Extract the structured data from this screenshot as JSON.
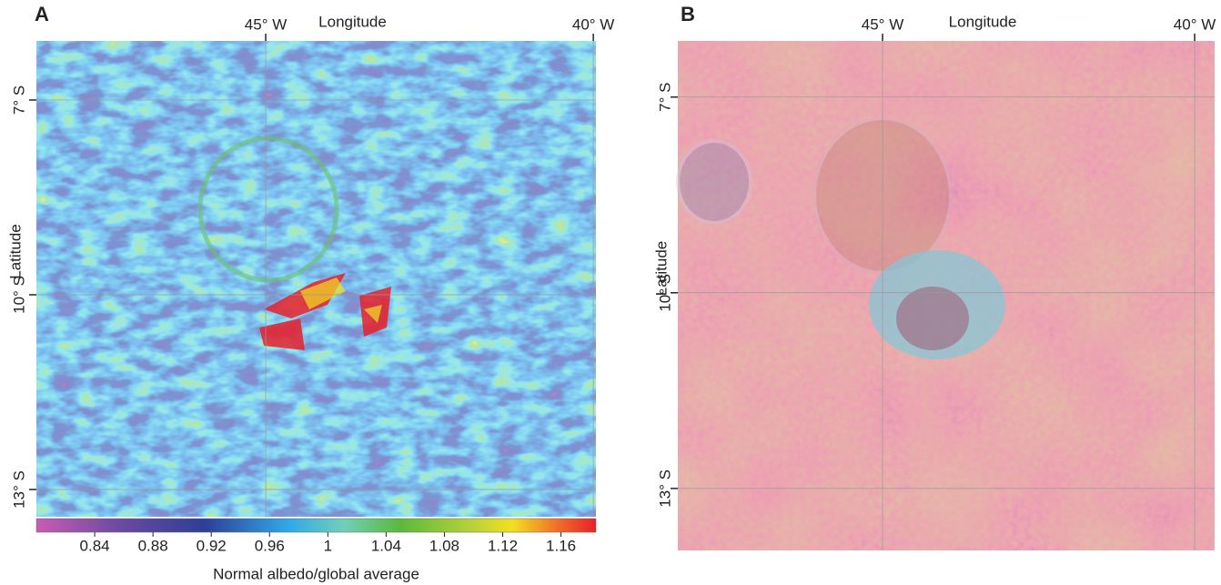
{
  "panels": [
    {
      "label": "A",
      "x_axis_label": "Longitude",
      "y_axis_label": "Latitude",
      "xlim": [
        -48.5,
        -39.96
      ],
      "ylim": [
        -13.42,
        -6.09
      ],
      "xticks": [
        {
          "value": -45,
          "label": "45° W"
        },
        {
          "value": -40,
          "label": "40° W"
        }
      ],
      "yticks": [
        {
          "value": -7,
          "label": "7° S"
        },
        {
          "value": -10,
          "label": "10° S"
        },
        {
          "value": -13,
          "label": "13° S"
        }
      ],
      "colorbar": {
        "label": "Normal albedo/global average",
        "lim": [
          0.8,
          1.184
        ],
        "ticks": [
          0.84,
          0.88,
          0.92,
          0.96,
          1,
          1.04,
          1.08,
          1.12,
          1.16
        ]
      }
    },
    {
      "label": "B",
      "x_axis_label": "Longitude",
      "y_axis_label": "Latitude",
      "xlim": [
        -48.28,
        -39.68
      ],
      "ylim": [
        -13.95,
        -6.14
      ],
      "xticks": [
        {
          "value": -45,
          "label": "45° W"
        },
        {
          "value": -40,
          "label": "40° W"
        }
      ],
      "yticks": [
        {
          "value": -7,
          "label": "7° S"
        },
        {
          "value": -10,
          "label": "10° S"
        },
        {
          "value": -13,
          "label": "13° S"
        }
      ]
    }
  ]
}
